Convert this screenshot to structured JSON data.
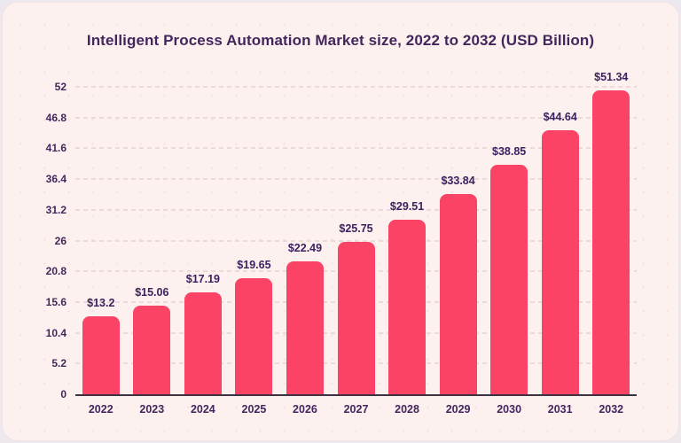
{
  "page": {
    "title": "Intelligent Process Automation Market size, 2022 to 2032 (USD Billion)"
  },
  "chart_data": {
    "type": "bar",
    "title": "Intelligent Process Automation Market size, 2022 to 2032 (USD Billion)",
    "categories": [
      "2022",
      "2023",
      "2024",
      "2025",
      "2026",
      "2027",
      "2028",
      "2029",
      "2030",
      "2031",
      "2032"
    ],
    "values": [
      13.2,
      15.06,
      17.19,
      19.65,
      22.49,
      25.75,
      29.51,
      33.84,
      38.85,
      44.64,
      51.34
    ],
    "value_labels": [
      "$13.2",
      "$15.06",
      "$17.19",
      "$19.65",
      "$22.49",
      "$25.75",
      "$29.51",
      "$33.84",
      "$38.85",
      "$44.64",
      "$51.34"
    ],
    "y_tick_labels": [
      "0",
      "5.2",
      "10.4",
      "15.6",
      "20.8",
      "26",
      "31.2",
      "36.4",
      "41.6",
      "46.8",
      "52"
    ],
    "y_tick_values": [
      0,
      5.2,
      10.4,
      15.6,
      20.8,
      26,
      31.2,
      36.4,
      41.6,
      46.8,
      52
    ],
    "xlabel": "",
    "ylabel": "",
    "ylim": [
      0,
      52
    ],
    "grid": "horizontal-dashed",
    "legend": "none",
    "colors": {
      "bar": "#fb4365",
      "title_text": "#44265e",
      "tick_text": "#44265e",
      "value_label_text": "#3c2160",
      "gridline": "#ecdadb",
      "axis_line": "#3d3242",
      "card_background": "#fcf1ee"
    }
  }
}
